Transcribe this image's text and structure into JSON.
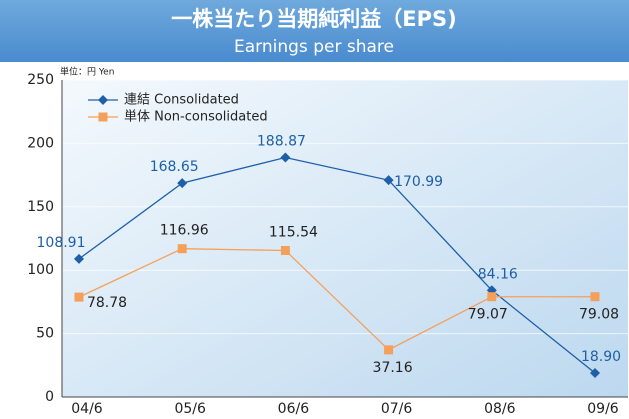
{
  "chart_data": {
    "type": "line",
    "title": "一株当たり当期純利益（EPS)",
    "subtitle": "Earnings per share",
    "unit_label": "単位：円 Yen",
    "categories": [
      "04/6",
      "05/6",
      "06/6",
      "07/6",
      "08/6",
      "09/6"
    ],
    "series": [
      {
        "name": "連結 Consolidated",
        "color": "#1f5fa8",
        "marker": "diamond",
        "values": [
          108.91,
          168.65,
          188.87,
          170.99,
          84.16,
          18.9
        ],
        "value_labels": [
          "108.91",
          "168.65",
          "188.87",
          "170.99",
          "84.16",
          "18.90"
        ]
      },
      {
        "name": "単体 Non-consolidated",
        "color": "#f5a05a",
        "marker": "square",
        "values": [
          78.78,
          116.96,
          115.54,
          37.16,
          79.07,
          79.08
        ],
        "value_labels": [
          "78.78",
          "116.96",
          "115.54",
          "37.16",
          "79.07",
          "79.08"
        ]
      }
    ],
    "ylim": [
      0,
      250
    ],
    "yticks": [
      0,
      50,
      100,
      150,
      200,
      250
    ],
    "grid": true,
    "legend": "upper left"
  }
}
